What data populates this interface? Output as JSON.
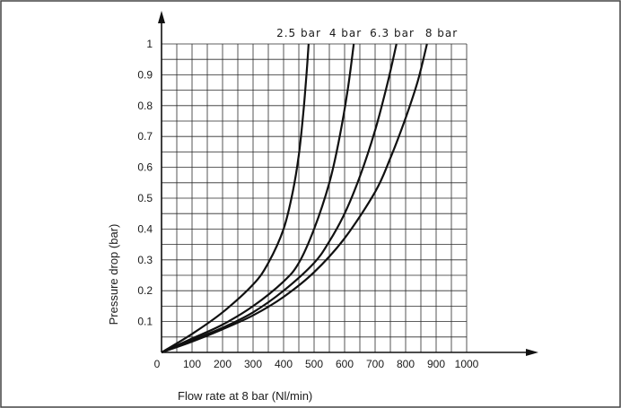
{
  "chart_data": {
    "type": "line",
    "title": "",
    "xlabel": "Flow rate at 8 bar (Nl/min)",
    "ylabel": "Pressure drop (bar)",
    "xlim": [
      0,
      1000
    ],
    "ylim": [
      0,
      1
    ],
    "x_ticks": [
      "0",
      "100",
      "200",
      "300",
      "400",
      "500",
      "600",
      "700",
      "800",
      "900",
      "1000"
    ],
    "y_ticks": [
      "0.1",
      "0.2",
      "0.3",
      "0.4",
      "0.5",
      "0.6",
      "0.7",
      "0.8",
      "0.9",
      "1"
    ],
    "grid": true,
    "legend": "labels at top of curves",
    "series": [
      {
        "name": "2.5 bar",
        "points": [
          [
            0,
            0
          ],
          [
            100,
            0.06
          ],
          [
            200,
            0.13
          ],
          [
            300,
            0.22
          ],
          [
            350,
            0.29
          ],
          [
            400,
            0.4
          ],
          [
            430,
            0.52
          ],
          [
            450,
            0.64
          ],
          [
            465,
            0.78
          ],
          [
            475,
            0.9
          ],
          [
            482,
            1.0
          ]
        ]
      },
      {
        "name": "4 bar",
        "points": [
          [
            0,
            0
          ],
          [
            100,
            0.045
          ],
          [
            200,
            0.09
          ],
          [
            300,
            0.15
          ],
          [
            400,
            0.23
          ],
          [
            450,
            0.29
          ],
          [
            500,
            0.4
          ],
          [
            550,
            0.55
          ],
          [
            580,
            0.68
          ],
          [
            610,
            0.85
          ],
          [
            630,
            1.0
          ]
        ]
      },
      {
        "name": "6.3 bar",
        "points": [
          [
            0,
            0
          ],
          [
            100,
            0.04
          ],
          [
            200,
            0.08
          ],
          [
            300,
            0.13
          ],
          [
            400,
            0.2
          ],
          [
            500,
            0.29
          ],
          [
            550,
            0.36
          ],
          [
            600,
            0.45
          ],
          [
            650,
            0.57
          ],
          [
            700,
            0.72
          ],
          [
            740,
            0.87
          ],
          [
            770,
            1.0
          ]
        ]
      },
      {
        "name": "8 bar",
        "points": [
          [
            0,
            0
          ],
          [
            100,
            0.035
          ],
          [
            200,
            0.075
          ],
          [
            300,
            0.12
          ],
          [
            400,
            0.18
          ],
          [
            500,
            0.26
          ],
          [
            600,
            0.37
          ],
          [
            700,
            0.52
          ],
          [
            750,
            0.63
          ],
          [
            800,
            0.76
          ],
          [
            840,
            0.88
          ],
          [
            870,
            1.0
          ]
        ]
      }
    ],
    "colors": {
      "line": "#111111",
      "grid": "#2a2a2a",
      "border": "#333333"
    }
  }
}
